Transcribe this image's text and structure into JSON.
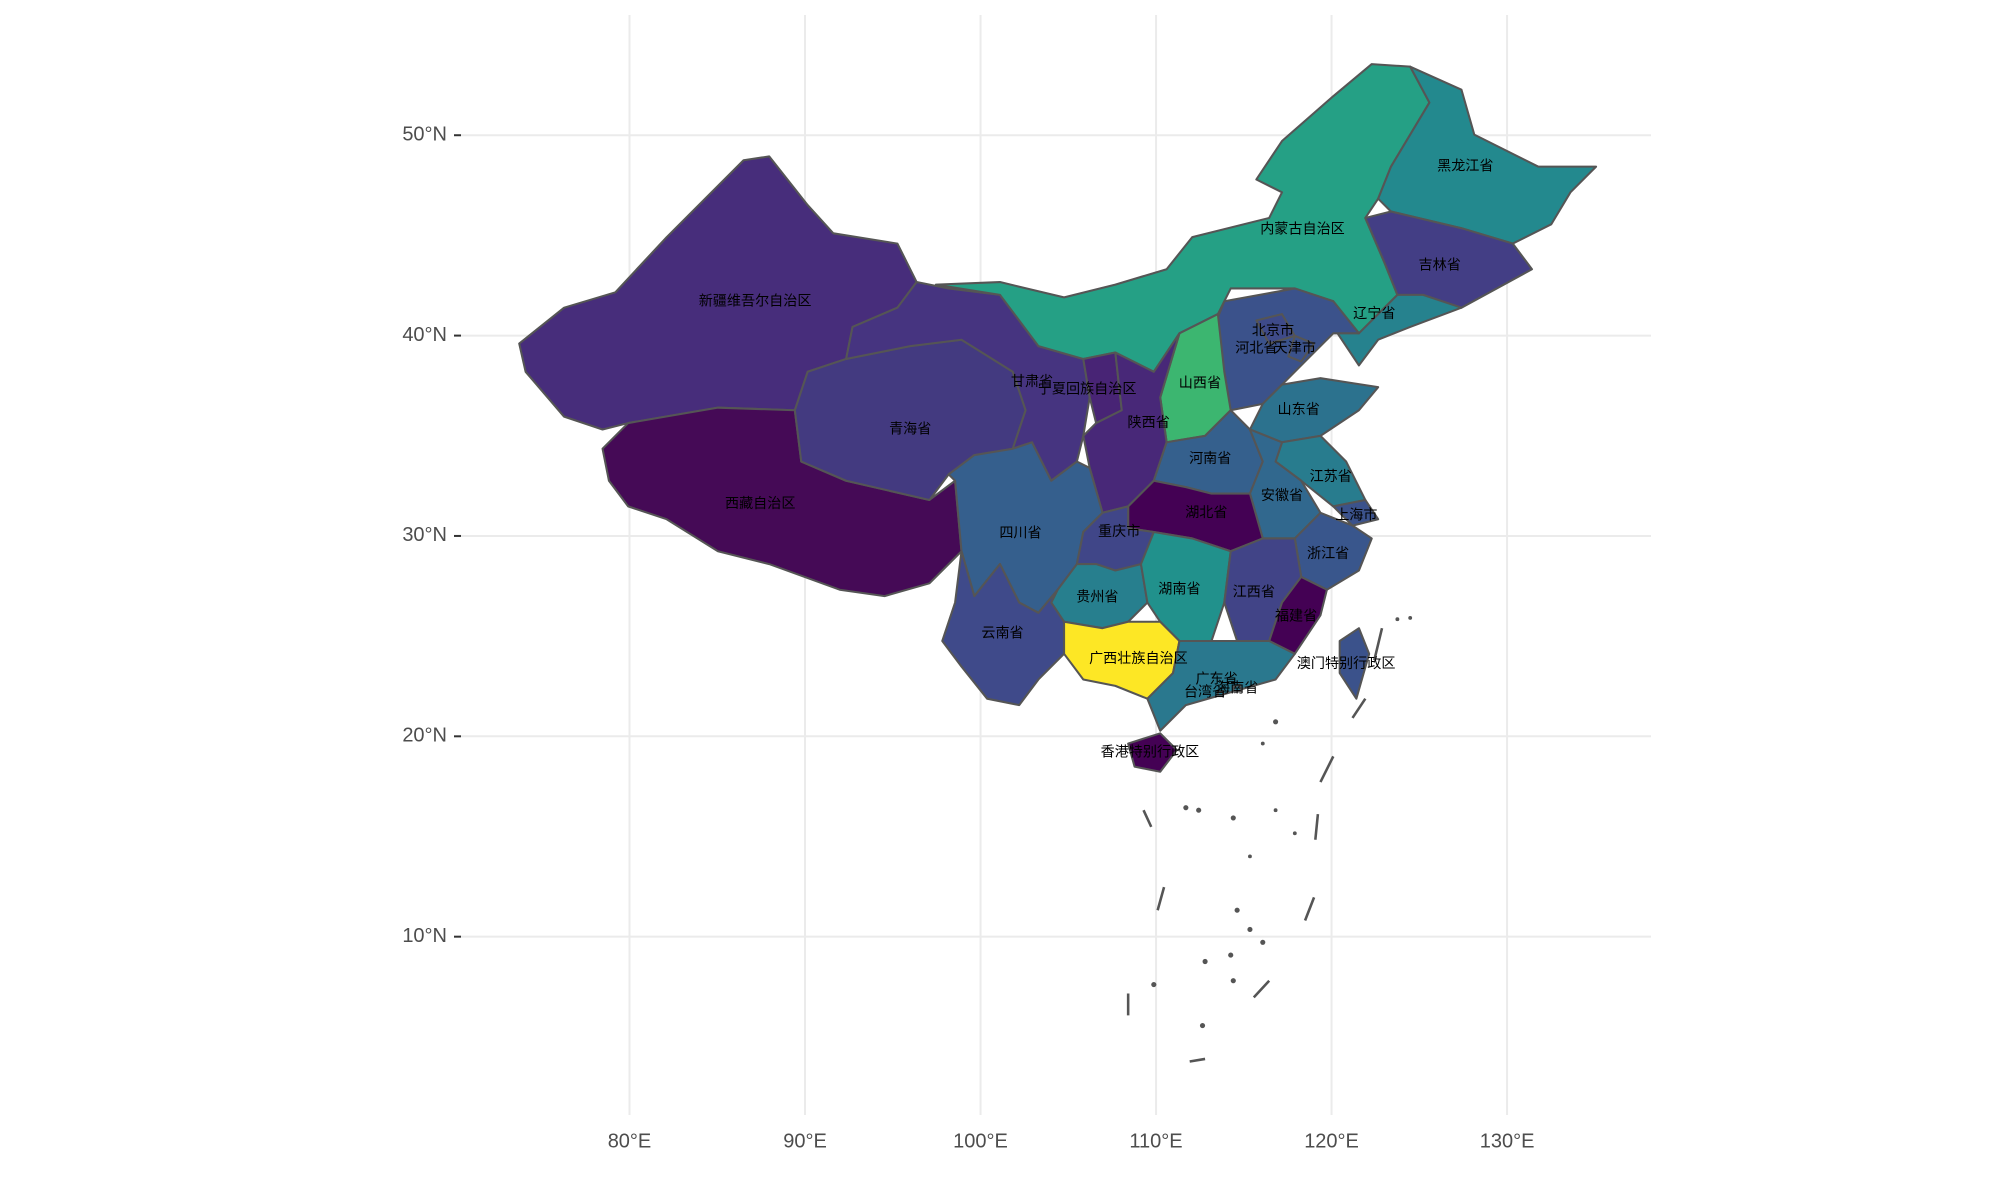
{
  "chart_data": {
    "type": "map",
    "xlim": [
      70.4,
      138.2
    ],
    "ylim": [
      1.1,
      56
    ],
    "xticks": [
      {
        "value": 80,
        "label": "80°E"
      },
      {
        "value": 90,
        "label": "90°E"
      },
      {
        "value": 100,
        "label": "100°E"
      },
      {
        "value": 110,
        "label": "110°E"
      },
      {
        "value": 120,
        "label": "120°E"
      },
      {
        "value": 130,
        "label": "130°E"
      }
    ],
    "yticks": [
      {
        "value": 10,
        "label": "10°N"
      },
      {
        "value": 20,
        "label": "20°N"
      },
      {
        "value": 30,
        "label": "30°N"
      },
      {
        "value": 40,
        "label": "40°N"
      },
      {
        "value": 50,
        "label": "50°N"
      }
    ],
    "grid": true,
    "regions": [
      {
        "name": "新疆维吾尔自治区",
        "color": "#472d7b"
      },
      {
        "name": "西藏自治区",
        "color": "#450a56"
      },
      {
        "name": "青海省",
        "color": "#433a80"
      },
      {
        "name": "甘肃省",
        "color": "#463480"
      },
      {
        "name": "内蒙古自治区",
        "color": "#25a085"
      },
      {
        "name": "黑龙江省",
        "color": "#23898e"
      },
      {
        "name": "吉林省",
        "color": "#433e85"
      },
      {
        "name": "辽宁省",
        "color": "#26828e"
      },
      {
        "name": "河北省",
        "color": "#3b528b"
      },
      {
        "name": "北京市",
        "color": "#3e4a89"
      },
      {
        "name": "天津市",
        "color": "#3b528b"
      },
      {
        "name": "山西省",
        "color": "#3cb670"
      },
      {
        "name": "山东省",
        "color": "#2c728e"
      },
      {
        "name": "宁夏回族自治区",
        "color": "#482475"
      },
      {
        "name": "陕西省",
        "color": "#482878"
      },
      {
        "name": "河南省",
        "color": "#35608d"
      },
      {
        "name": "江苏省",
        "color": "#287c8e"
      },
      {
        "name": "安徽省",
        "color": "#31688e"
      },
      {
        "name": "上海市",
        "color": "#3b528b"
      },
      {
        "name": "湖北省",
        "color": "#440154"
      },
      {
        "name": "浙江省",
        "color": "#39568c"
      },
      {
        "name": "四川省",
        "color": "#355f8d"
      },
      {
        "name": "重庆市",
        "color": "#404688"
      },
      {
        "name": "贵州省",
        "color": "#277f8e"
      },
      {
        "name": "湖南省",
        "color": "#21918c"
      },
      {
        "name": "江西省",
        "color": "#414487"
      },
      {
        "name": "福建省",
        "color": "#440154"
      },
      {
        "name": "云南省",
        "color": "#3f4a8a"
      },
      {
        "name": "广西壮族自治区",
        "color": "#fde725"
      },
      {
        "name": "广东省",
        "color": "#2a788e"
      },
      {
        "name": "海南省",
        "color": "#440154"
      },
      {
        "name": "台湾省",
        "color": "#3b528b"
      },
      {
        "name": "香港特别行政区",
        "color": "#2a788e"
      },
      {
        "name": "澳门特别行政区",
        "color": "#2a788e"
      }
    ]
  }
}
